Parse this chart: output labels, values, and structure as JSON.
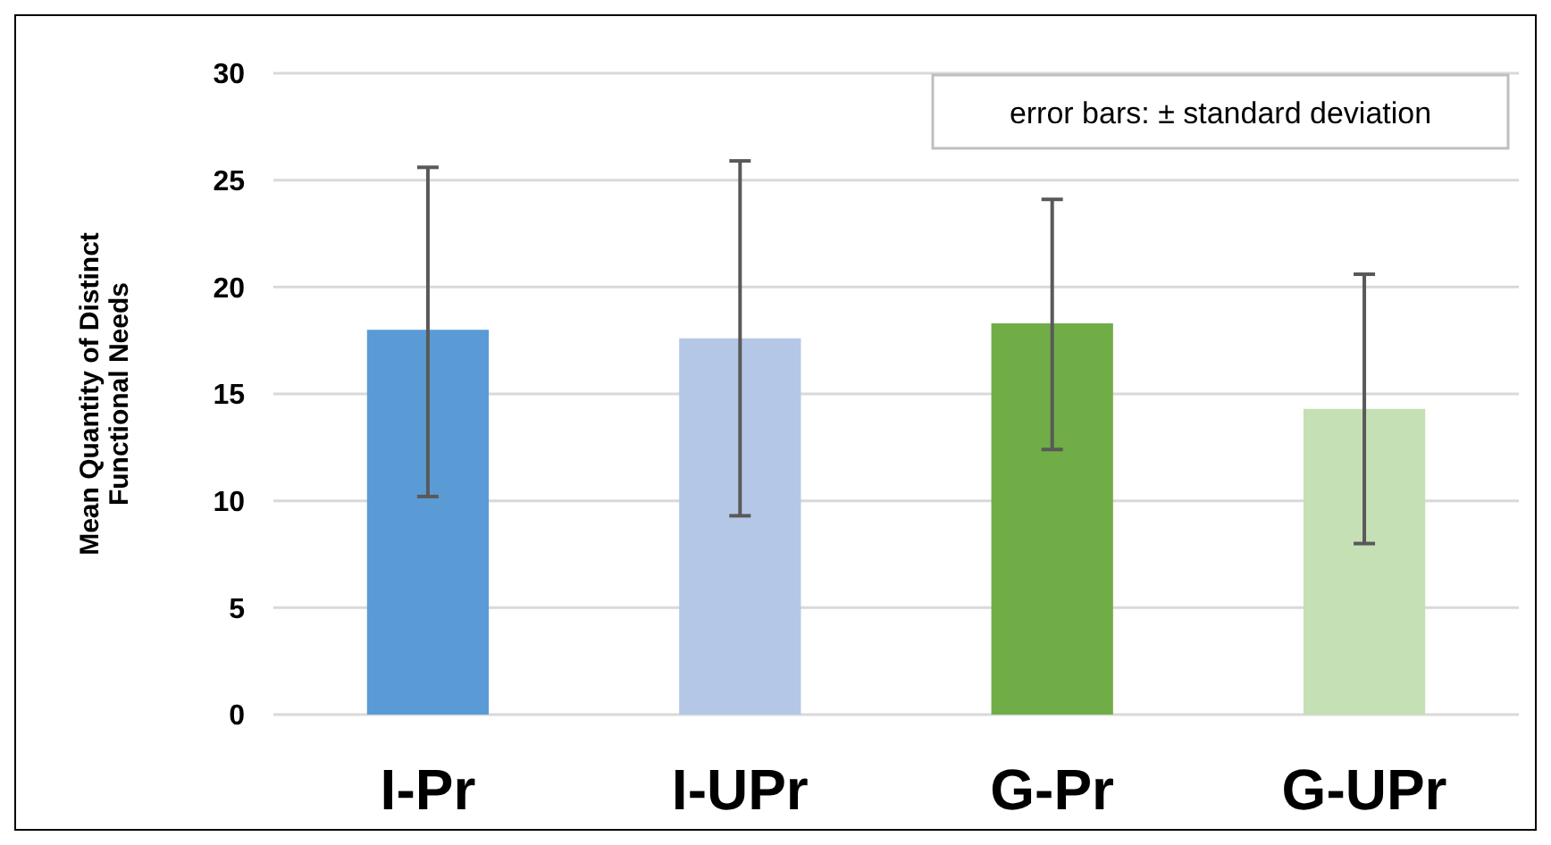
{
  "chart_data": {
    "type": "bar",
    "ylabel": "Mean Quantity of Distinct\nFunctional Needs",
    "categories": [
      "I-Pr",
      "I-UPr",
      "G-Pr",
      "G-UPr"
    ],
    "values": [
      18.0,
      17.6,
      18.3,
      14.3
    ],
    "colors": [
      "#5b9bd5",
      "#b4c7e7",
      "#70ad47",
      "#c5e0b4"
    ],
    "errors": [
      [
        10.2,
        25.6
      ],
      [
        9.3,
        25.9
      ],
      [
        12.4,
        24.1
      ],
      [
        8.0,
        20.6
      ]
    ],
    "ylim": [
      0,
      30
    ],
    "yticks": [
      0,
      5,
      10,
      15,
      20,
      25,
      30
    ],
    "grid": "y",
    "annotations": [
      "error bars: ± standard deviation"
    ]
  }
}
